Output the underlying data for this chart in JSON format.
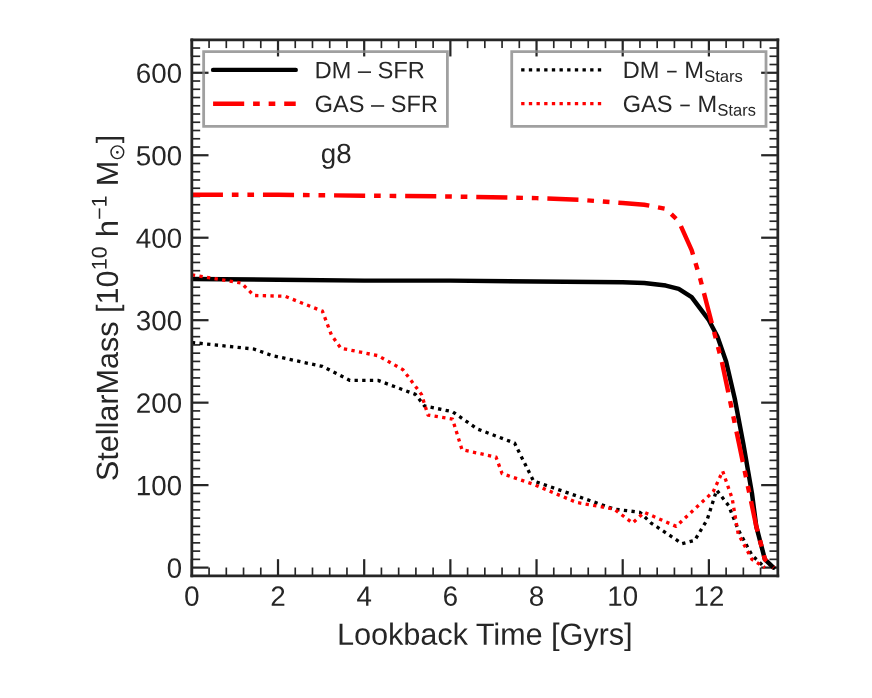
{
  "chart_data": {
    "type": "line",
    "xlabel": "Lookback Time [Gyrs]",
    "ylabel": "StellarMass [10$^{10}$ h$^{−1}$ M$_{⊙}$]",
    "annotations": [
      "g8"
    ],
    "xlim": [
      0,
      13.6
    ],
    "ylim": [
      -10,
      640
    ],
    "xticks": [
      0,
      2,
      4,
      6,
      8,
      10,
      12
    ],
    "yticks": [
      0,
      100,
      200,
      300,
      400,
      500,
      600
    ],
    "grid": false,
    "legend": "top",
    "series": [
      {
        "name": "DM – SFR",
        "color": "#000000",
        "line_style": "solid",
        "x": [
          0,
          2,
          4,
          6,
          8,
          10,
          10.5,
          11,
          11.3,
          11.6,
          12,
          12.2,
          12.4,
          12.6,
          12.8,
          13.0,
          13.1,
          13.3,
          13.5
        ],
        "values": [
          350,
          349,
          348,
          348,
          347,
          346,
          345,
          342,
          338,
          328,
          300,
          280,
          250,
          205,
          150,
          90,
          50,
          10,
          0
        ]
      },
      {
        "name": "GAS – SFR",
        "color": "#ff0000",
        "line_style": "dashed",
        "x": [
          0,
          2,
          4,
          6,
          8,
          9,
          10,
          10.5,
          11,
          11.3,
          11.6,
          11.8,
          12,
          12.3,
          12.5,
          12.7,
          12.9,
          13.1,
          13.3,
          13.5
        ],
        "values": [
          452,
          452,
          451,
          450,
          448,
          446,
          442,
          440,
          435,
          420,
          385,
          350,
          310,
          250,
          200,
          150,
          100,
          50,
          10,
          0
        ]
      },
      {
        "name": "DM – M$_{Stars}$",
        "color": "#000000",
        "line_style": "dotted",
        "x": [
          0,
          1.44,
          1.87,
          3.03,
          3.67,
          4.32,
          5.19,
          5.4,
          6.05,
          6.63,
          7.49,
          7.93,
          8.65,
          9.8,
          10.4,
          10.66,
          11.38,
          11.67,
          11.96,
          12.18,
          12.46,
          12.68,
          13.0,
          13.3
        ],
        "values": [
          273,
          265,
          257,
          244,
          227,
          227,
          210,
          196,
          189,
          168,
          151,
          105,
          92,
          71,
          67,
          54,
          29,
          33,
          58,
          94,
          75,
          46,
          15,
          0
        ]
      },
      {
        "name": "GAS – M$_{Stars}$",
        "color": "#ff0000",
        "line_style": "dotted",
        "x": [
          0,
          1.15,
          1.44,
          2.16,
          3.03,
          3.24,
          3.46,
          4.32,
          4.9,
          5.33,
          5.48,
          6.05,
          6.27,
          7.06,
          7.2,
          7.93,
          8.93,
          9.8,
          10.23,
          10.5,
          11.24,
          11.67,
          12.1,
          12.32,
          12.54,
          12.68,
          13.0,
          13.3
        ],
        "values": [
          355,
          345,
          330,
          329,
          311,
          282,
          266,
          257,
          240,
          210,
          185,
          180,
          143,
          134,
          114,
          101,
          79,
          71,
          54,
          67,
          50,
          71,
          92,
          117,
          84,
          41,
          10,
          0
        ]
      }
    ]
  }
}
